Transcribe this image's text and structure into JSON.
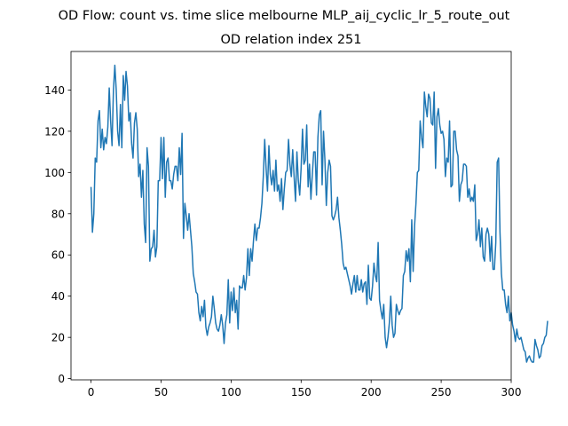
{
  "chart_data": {
    "type": "line",
    "suptitle": "OD Flow: count vs. time slice melbourne MLP_aij_cyclic_lr_5_route_out",
    "title": "OD relation index 251",
    "xlabel": "",
    "ylabel": "",
    "xlim": [
      -14.3,
      300
    ],
    "ylim": [
      -0.6,
      158.7
    ],
    "xticks": [
      0,
      50,
      100,
      150,
      200,
      250,
      300
    ],
    "yticks": [
      0,
      20,
      40,
      60,
      80,
      100,
      120,
      140
    ],
    "grid": false,
    "line_color": "#1f77b4",
    "series": [
      {
        "y": [
          93,
          71,
          80,
          107,
          105,
          125,
          130,
          112,
          121,
          111,
          117,
          114,
          122,
          141,
          125,
          113,
          140,
          152,
          140,
          120,
          113,
          133,
          112,
          147,
          135,
          149,
          142,
          125,
          129,
          114,
          107,
          124,
          129,
          121,
          98,
          104,
          88,
          101,
          75,
          66,
          112,
          103,
          57,
          63,
          64,
          72,
          59,
          64,
          96,
          96,
          117,
          97,
          117,
          88,
          105,
          107,
          96,
          96,
          92,
          99,
          103,
          103,
          96,
          112,
          99,
          119,
          68,
          85,
          79,
          72,
          80,
          72,
          64,
          51,
          47,
          42,
          41,
          32,
          28,
          35,
          30,
          38,
          25,
          21,
          25,
          27,
          30,
          40,
          34,
          27,
          24,
          23,
          26,
          31,
          26,
          17,
          27,
          31,
          48,
          27,
          42,
          33,
          44,
          32,
          38,
          24,
          45,
          44,
          44,
          50,
          43,
          49,
          63,
          50,
          63,
          57,
          67,
          75,
          67,
          73,
          73,
          78,
          85,
          98,
          116,
          102,
          91,
          113,
          99,
          94,
          101,
          91,
          106,
          91,
          94,
          86,
          97,
          82,
          92,
          100,
          101,
          116,
          104,
          98,
          111,
          98,
          86,
          110,
          96,
          89,
          102,
          121,
          104,
          106,
          123,
          93,
          104,
          87,
          99,
          110,
          110,
          89,
          117,
          128,
          130,
          94,
          120,
          106,
          84,
          100,
          106,
          103,
          79,
          77,
          79,
          82,
          88,
          78,
          72,
          65,
          56,
          53,
          54,
          51,
          48,
          45,
          41,
          46,
          50,
          42,
          50,
          43,
          43,
          48,
          42,
          46,
          47,
          36,
          55,
          39,
          38,
          45,
          56,
          50,
          47,
          66,
          38,
          33,
          29,
          36,
          20,
          15,
          20,
          27,
          40,
          26,
          20,
          22,
          36,
          33,
          31,
          33,
          34,
          50,
          52,
          62,
          57,
          63,
          47,
          77,
          52,
          74,
          85,
          100,
          101,
          125,
          117,
          112,
          139,
          132,
          127,
          138,
          136,
          124,
          123,
          139,
          102,
          127,
          131,
          123,
          119,
          120,
          116,
          98,
          107,
          105,
          125,
          93,
          94,
          120,
          120,
          111,
          108,
          86,
          94,
          96,
          104,
          104,
          103,
          88,
          92,
          86,
          88,
          86,
          94,
          67,
          70,
          77,
          64,
          73,
          59,
          57,
          70,
          73,
          70,
          57,
          69,
          53,
          53,
          66,
          105,
          107,
          71,
          51,
          43,
          43,
          36,
          32,
          40,
          28,
          32,
          26,
          23,
          18,
          24,
          20,
          19,
          20,
          17,
          14,
          13,
          8,
          10,
          11,
          9,
          8,
          8,
          19,
          16,
          14,
          10,
          11,
          16,
          17,
          20,
          21,
          28
        ]
      }
    ]
  }
}
